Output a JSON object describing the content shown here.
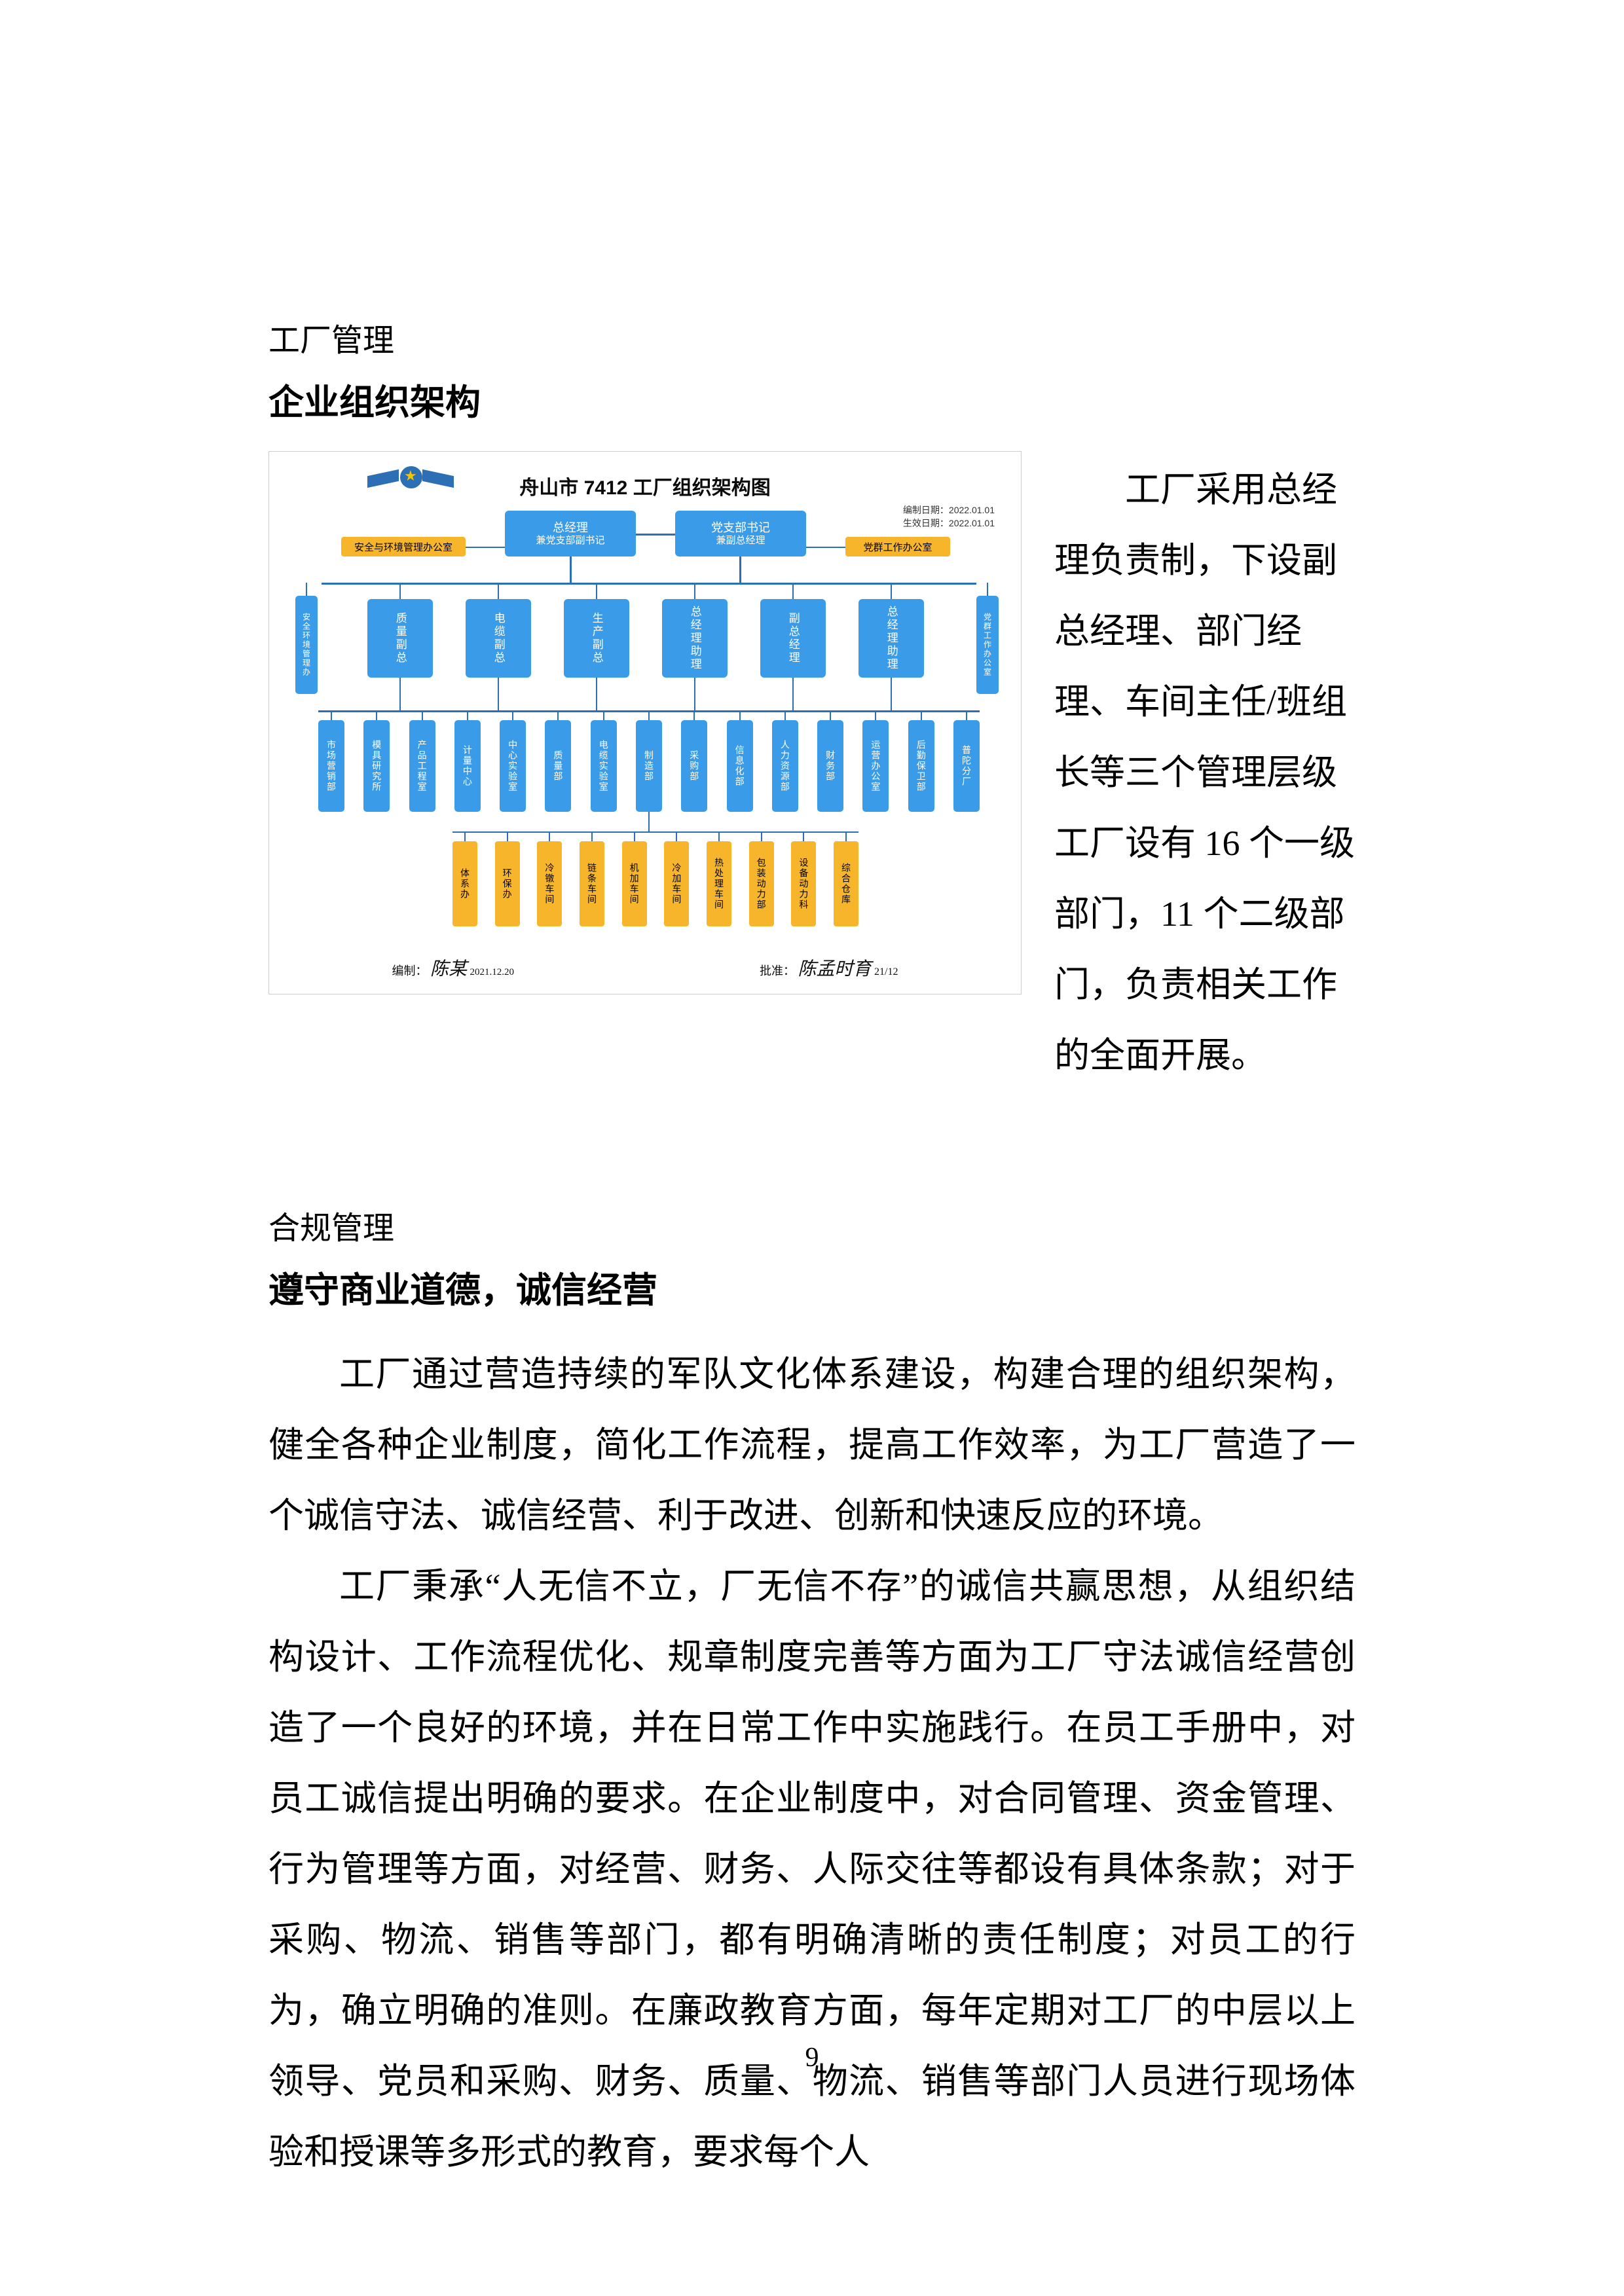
{
  "headings": {
    "h1_small": "工厂管理",
    "h1_title": "企业组织架构",
    "h2_small": "合规管理",
    "h2_title": "遵守商业道德，诚信经营"
  },
  "side_paragraph": "工厂采用总经理负责制，下设副总经理、部门经理、车间主任/班组长等三个管理层级工厂设有 16 个一级部门，11 个二级部门，负责相关工作的全面开展。",
  "body": {
    "p1": "工厂通过营造持续的军队文化体系建设，构建合理的组织架构，健全各种企业制度，简化工作流程，提高工作效率，为工厂营造了一个诚信守法、诚信经营、利于改进、创新和快速反应的环境。",
    "p2": "工厂秉承“人无信不立，厂无信不存”的诚信共赢思想，从组织结构设计、工作流程优化、规章制度完善等方面为工厂守法诚信经营创造了一个良好的环境，并在日常工作中实施践行。在员工手册中，对员工诚信提出明确的要求。在企业制度中，对合同管理、资金管理、行为管理等方面，对经营、财务、人际交往等都设有具体条款；对于采购、物流、销售等部门，都有明确清晰的责任制度；对员工的行为，确立明确的准则。在廉政教育方面，每年定期对工厂的中层以上领导、党员和采购、财务、质量、物流、销售等部门人员进行现场体验和授课等多形式的教育，要求每个人"
  },
  "page_number": "9",
  "chart": {
    "title": "舟山市 7412 工厂组织架构图",
    "date1": "编制日期：2022.01.01",
    "date2": "生效日期：2022.01.01",
    "colors": {
      "blue": "#3a9ce8",
      "yellow": "#f7b52b",
      "line": "#2c6fb5",
      "text": "#000000",
      "bg": "#ffffff"
    },
    "top_left": {
      "l1": "总经理",
      "l2": "兼党支部副书记"
    },
    "top_right": {
      "l1": "党支部书记",
      "l2": "兼副总经理"
    },
    "yellow_left": "安全与环境管理办公室",
    "yellow_right": "党群工作办公室",
    "mid_boxes": [
      "质量副总",
      "电缆副总",
      "生产副总",
      "总经理助理",
      "副总经理",
      "总经理助理"
    ],
    "far_left_v": "安全环境管理办",
    "far_right_v": "党群工作办公室",
    "dept_row": [
      "市场营销部",
      "模具研究所",
      "产品工程室",
      "计量中心",
      "中心实验室",
      "质量部",
      "电缆实验室",
      "制造部",
      "采购部",
      "信息化部",
      "人力资源部",
      "财务部",
      "运营办公室",
      "后勤保卫部",
      "普陀分厂"
    ],
    "bottom_row": [
      "体系办",
      "环保办",
      "冷镦车间",
      "链条车间",
      "机加车间",
      "冷加车间",
      "热处理车间",
      "包装动力部",
      "设备动力科",
      "综合仓库"
    ],
    "sign_left_label": "编制：",
    "sign_left_name": "陈某",
    "sign_left_date": "2021.12.20",
    "sign_right_label": "批准：",
    "sign_right_name": "陈孟时育",
    "sign_right_date": "21/12"
  }
}
